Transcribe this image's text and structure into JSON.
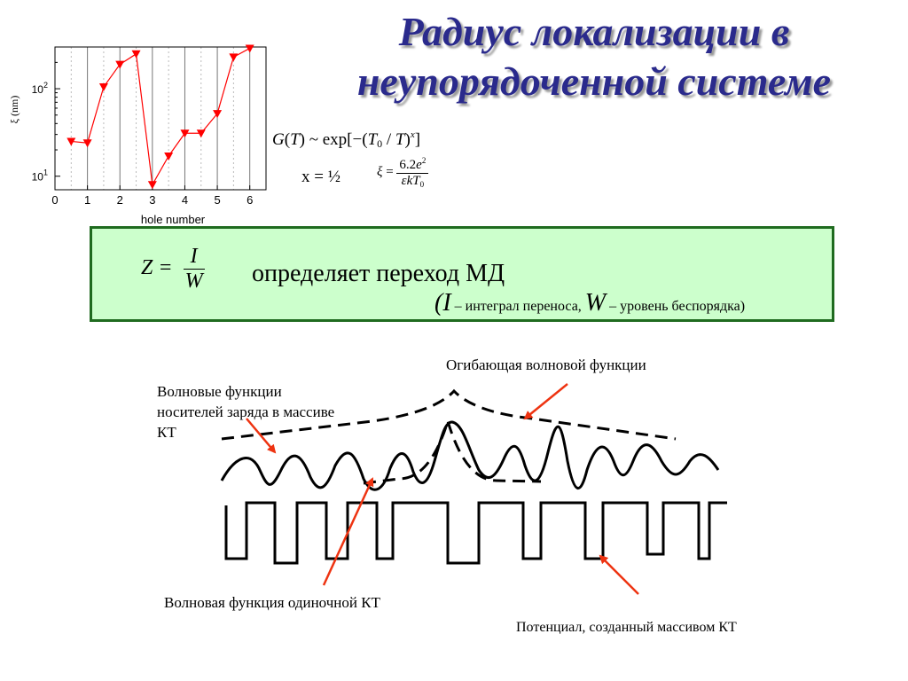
{
  "title": {
    "line1": "Радиус локализации в",
    "line2": "неупорядоченной системе"
  },
  "formulas": {
    "gt_formula": "G(T) ~ exp[−(T0 / T)x]",
    "x_value": "x = ½",
    "xi_formula": "ξ = 6.2e² / εkT0"
  },
  "box": {
    "z_formula": "Z = I / W",
    "defines_text": "определяет переход МД",
    "legend_text": "(I – интеграл переноса, W – уровень беспорядка)"
  },
  "labels": {
    "envelope": "Огибающая волновой функции",
    "carriers_line1": "Волновые функции",
    "carriers_line2": "носителей заряда  в массиве",
    "carriers_line3": "КТ",
    "single_qd": "Волновая функция одиночной КТ",
    "potential": "Потенциал, созданный массивом КТ"
  },
  "colors": {
    "title": "#2a2a8c",
    "marker": "#ff0000",
    "box_fill": "#ccffcc",
    "box_border": "#1f6b1f",
    "arrow": "#ee3311"
  },
  "chart_data": {
    "type": "line",
    "xlabel": "hole number",
    "ylabel": "ξ (nm)",
    "yscale": "log",
    "xlim": [
      0,
      6.5
    ],
    "ylim": [
      7,
      300
    ],
    "xticks": [
      "0",
      "1",
      "2",
      "3",
      "4",
      "5",
      "6"
    ],
    "yticks": [
      {
        "value": 10,
        "label": "10",
        "exp": "1"
      },
      {
        "value": 100,
        "label": "10",
        "exp": "2"
      }
    ],
    "grid": true,
    "x": [
      0.5,
      1,
      1.5,
      2,
      2.5,
      3,
      3.5,
      4,
      4.5,
      5,
      5.5,
      6
    ],
    "values": [
      25,
      24,
      105,
      190,
      250,
      8,
      17,
      31,
      31,
      52,
      230,
      290
    ]
  }
}
